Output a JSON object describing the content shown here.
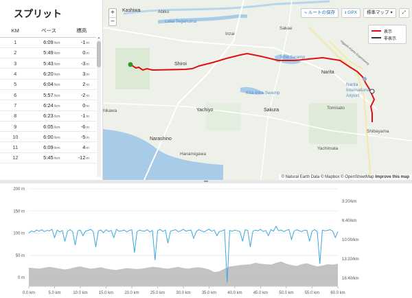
{
  "splits": {
    "title": "スプリット",
    "headers": {
      "km": "KM",
      "pace": "ペース",
      "elev": "標高"
    },
    "pace_unit": "/km",
    "elev_unit": "m",
    "rows": [
      {
        "km": "1",
        "pace": "6:09",
        "elev": "-1"
      },
      {
        "km": "2",
        "pace": "5:49",
        "elev": "0"
      },
      {
        "km": "3",
        "pace": "5:43",
        "elev": "-3"
      },
      {
        "km": "4",
        "pace": "6:20",
        "elev": "3"
      },
      {
        "km": "5",
        "pace": "6:04",
        "elev": "2"
      },
      {
        "km": "6",
        "pace": "5:57",
        "elev": "-2"
      },
      {
        "km": "7",
        "pace": "6:24",
        "elev": "0"
      },
      {
        "km": "8",
        "pace": "6:23",
        "elev": "-1"
      },
      {
        "km": "9",
        "pace": "6:05",
        "elev": "-6"
      },
      {
        "km": "10",
        "pace": "6:00",
        "elev": "-5"
      },
      {
        "km": "11",
        "pace": "6:09",
        "elev": "4"
      },
      {
        "km": "12",
        "pace": "5:45",
        "elev": "-12"
      }
    ]
  },
  "map": {
    "toolbar": {
      "save_route": "ルートの保存",
      "gpx": "GPX",
      "map_type": "標準マップ"
    },
    "zoom": {
      "in": "+",
      "out": "−"
    },
    "legend": {
      "shown": "表示",
      "hidden": "非表示"
    },
    "colors": {
      "route": "#e01010",
      "start": "#2a9d2a"
    },
    "labels": [
      {
        "name": "kashiwa",
        "text": "Kashiwa"
      },
      {
        "name": "abiko",
        "text": "Abiko"
      },
      {
        "name": "tega",
        "text": "Lake Teganuma"
      },
      {
        "name": "inzai",
        "text": "Inzai"
      },
      {
        "name": "sakae",
        "text": "Sakae"
      },
      {
        "name": "inba",
        "text": "Inba Swamp"
      },
      {
        "name": "shiroi",
        "text": "Shiroi"
      },
      {
        "name": "narita",
        "text": "Narita"
      },
      {
        "name": "airport",
        "text": "Narita International Airport"
      },
      {
        "name": "kita",
        "text": "Kita-Inba Swamp"
      },
      {
        "name": "yachiyo",
        "text": "Yachiyo"
      },
      {
        "name": "sakura",
        "text": "Sakura"
      },
      {
        "name": "tomisato",
        "text": "Tomisato"
      },
      {
        "name": "shikawa",
        "text": "hikawa"
      },
      {
        "name": "shibayama",
        "text": "Shibayama"
      },
      {
        "name": "narashino",
        "text": "Narashino"
      },
      {
        "name": "hanamigawa",
        "text": "Hanamigawa"
      },
      {
        "name": "yachimata",
        "text": "Yachimata"
      },
      {
        "name": "higashi",
        "text": "Higashi-Kanto Expressway"
      }
    ],
    "attribution": {
      "text": "© Natural Earth Data © Mapbox © OpenStreetMap",
      "link": "Improve this map"
    }
  },
  "chart_data": {
    "type": "area",
    "x_label": "km",
    "x_ticks": [
      "0.0 km",
      "5.0 km",
      "10.0 km",
      "15.0 km",
      "20.0 km",
      "25.0 km",
      "30.0 km",
      "35.0 km",
      "40.0 km",
      "45.0 km",
      "50.0 km",
      "55.0 km",
      "60.0 km"
    ],
    "y_left_ticks": [
      "200 m",
      "150 m",
      "100 m",
      "50 m",
      "0 m"
    ],
    "y_left_range": [
      -20,
      200
    ],
    "y_right_ticks": [
      "3:20/km",
      "6:40/km",
      "10:00/km",
      "13:20/km",
      "16:40/km"
    ],
    "x_range": [
      0,
      60
    ],
    "series": [
      {
        "kind": "elevation",
        "color": "#bdbdbd",
        "x": [
          0,
          1,
          2,
          3,
          4,
          5,
          6,
          7,
          8,
          9,
          10,
          11,
          12,
          13,
          14,
          15,
          16,
          17,
          18,
          19,
          20,
          21,
          22,
          23,
          24,
          25,
          26,
          27,
          28,
          29,
          30,
          31,
          32,
          33,
          34,
          35,
          36,
          37,
          38,
          39,
          40,
          41,
          42,
          43,
          44,
          45,
          46,
          47,
          48,
          49,
          50,
          51,
          52,
          53,
          54,
          55,
          56,
          57,
          58,
          59,
          60
        ],
        "values": [
          22,
          21,
          20,
          22,
          24,
          22,
          20,
          18,
          20,
          23,
          25,
          22,
          20,
          21,
          23,
          20,
          18,
          17,
          19,
          21,
          20,
          19,
          20,
          22,
          24,
          23,
          21,
          20,
          22,
          24,
          21,
          20,
          22,
          23,
          21,
          18,
          12,
          14,
          20,
          25,
          26,
          28,
          29,
          30,
          33,
          31,
          30,
          29,
          33,
          36,
          31,
          28,
          26,
          30,
          32,
          28,
          25,
          27,
          30,
          29,
          31
        ]
      },
      {
        "kind": "pace",
        "color": "#3ba7dc",
        "range": [
          -10,
          250
        ],
        "x": [
          0,
          0.5,
          1,
          1.5,
          2,
          2.5,
          3,
          3.5,
          4,
          4.5,
          5,
          5.5,
          6,
          6.5,
          7,
          7.5,
          8,
          8.5,
          9,
          9.5,
          10,
          10.5,
          11,
          11.5,
          12,
          12.5,
          13,
          13.5,
          14,
          14.5,
          15,
          15.5,
          16,
          16.5,
          17,
          17.5,
          18,
          18.5,
          19,
          19.5,
          20,
          20.5,
          21,
          21.5,
          22,
          22.5,
          23,
          23.5,
          24,
          24.5,
          25,
          25.5,
          26,
          26.5,
          27,
          27.5,
          28,
          28.5,
          29,
          29.5,
          30,
          30.5,
          31,
          31.5,
          32,
          32.5,
          33,
          33.5,
          34,
          34.5,
          35,
          35.5,
          36,
          36.5,
          37,
          37.5,
          38,
          38.5,
          39,
          39.5,
          40,
          40.5,
          41,
          41.5,
          42,
          42.5,
          43,
          43.5,
          44,
          44.5,
          45,
          45.5,
          46,
          46.5,
          47,
          47.5,
          48,
          48.5,
          49,
          49.5,
          50,
          50.5,
          51,
          51.5,
          52,
          52.5,
          53,
          53.5,
          54,
          54.5,
          55,
          55.5,
          56,
          56.5,
          57,
          57.5,
          58,
          58.5,
          59,
          59.5,
          60
        ],
        "values": [
          132,
          138,
          135,
          140,
          137,
          141,
          136,
          139,
          138,
          142,
          120,
          140,
          135,
          139,
          110,
          137,
          141,
          136,
          100,
          138,
          140,
          125,
          137,
          139,
          142,
          136,
          95,
          138,
          140,
          133,
          141,
          136,
          139,
          120,
          142,
          137,
          138,
          140,
          135,
          139,
          141,
          80,
          136,
          140,
          138,
          137,
          141,
          135,
          139,
          60,
          138,
          142,
          136,
          140,
          105,
          137,
          139,
          141,
          136,
          138,
          142,
          137,
          139,
          140,
          118,
          136,
          141,
          138,
          135,
          139,
          142,
          137,
          140,
          125,
          136,
          138,
          141,
          0,
          139,
          137,
          140,
          138,
          136,
          110,
          141,
          139,
          95,
          137,
          140,
          138,
          142,
          136,
          139,
          125,
          141,
          137,
          150,
          138,
          140,
          136,
          139,
          142,
          115,
          137,
          141,
          138,
          136,
          140,
          139,
          110,
          137,
          141,
          136,
          50,
          140,
          138,
          139,
          141,
          137,
          120,
          136
        ]
      }
    ]
  }
}
